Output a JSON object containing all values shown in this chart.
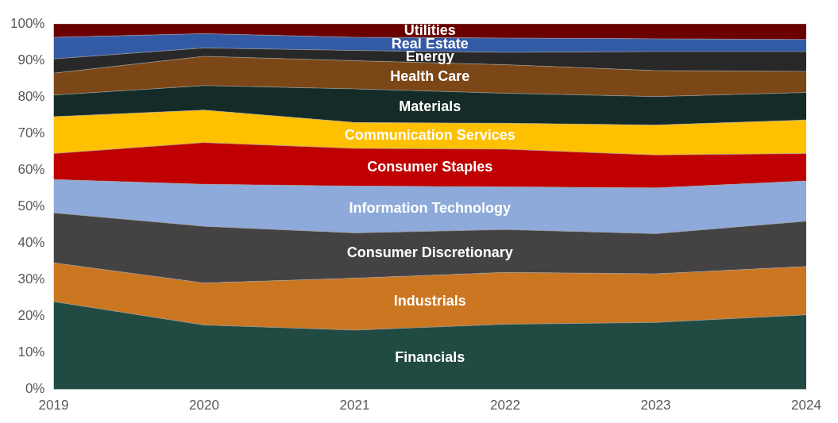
{
  "chart_data": {
    "type": "area",
    "stacked": true,
    "x": [
      2019,
      2020,
      2021,
      2022,
      2023,
      2024
    ],
    "xlim": [
      2019,
      2024
    ],
    "xticks": [
      2019,
      2020,
      2021,
      2022,
      2023,
      2024
    ],
    "ylim": [
      0,
      100
    ],
    "yticks": [
      {
        "value": 0,
        "label": "0%"
      },
      {
        "value": 10,
        "label": "10%"
      },
      {
        "value": 20,
        "label": "20%"
      },
      {
        "value": 30,
        "label": "30%"
      },
      {
        "value": 40,
        "label": "40%"
      },
      {
        "value": 50,
        "label": "50%"
      },
      {
        "value": 60,
        "label": "60%"
      },
      {
        "value": 70,
        "label": "70%"
      },
      {
        "value": 80,
        "label": "80%"
      },
      {
        "value": 90,
        "label": "90%"
      },
      {
        "value": 100,
        "label": "100%"
      }
    ],
    "grid": false,
    "legend": false,
    "series": [
      {
        "name": "Financials",
        "color": "#214a42",
        "values": [
          24.0,
          17.6,
          16.2,
          17.8,
          18.3,
          20.4
        ]
      },
      {
        "name": "Industrials",
        "color": "#cb7621",
        "values": [
          10.6,
          11.5,
          14.2,
          14.2,
          13.3,
          13.2
        ]
      },
      {
        "name": "Consumer Discretionary",
        "color": "#454244",
        "values": [
          13.7,
          15.5,
          12.4,
          11.7,
          11.0,
          12.4
        ]
      },
      {
        "name": "Information Technology",
        "color": "#8eaadb",
        "values": [
          9.1,
          11.5,
          12.8,
          11.7,
          12.5,
          11.0
        ]
      },
      {
        "name": "Consumer Staples",
        "color": "#c00000",
        "values": [
          7.1,
          11.4,
          10.3,
          10.3,
          9.0,
          7.5
        ]
      },
      {
        "name": "Communication Services",
        "color": "#ffc000",
        "values": [
          10.1,
          8.9,
          7.1,
          7.1,
          8.2,
          9.2
        ]
      },
      {
        "name": "Materials",
        "color": "#152b28",
        "values": [
          5.9,
          6.7,
          9.2,
          8.2,
          7.8,
          7.5
        ]
      },
      {
        "name": "Health Care",
        "color": "#7b4716",
        "values": [
          6.0,
          8.0,
          7.7,
          7.8,
          7.1,
          5.8
        ]
      },
      {
        "name": "Energy",
        "color": "#282828",
        "values": [
          3.9,
          2.3,
          2.8,
          3.4,
          5.2,
          5.4
        ]
      },
      {
        "name": "Real Estate",
        "color": "#335aa4",
        "values": [
          5.9,
          3.9,
          3.6,
          3.9,
          3.5,
          3.3
        ]
      },
      {
        "name": "Utilities",
        "color": "#6b0000",
        "values": [
          3.7,
          2.7,
          3.7,
          3.9,
          4.1,
          4.3
        ]
      }
    ]
  }
}
